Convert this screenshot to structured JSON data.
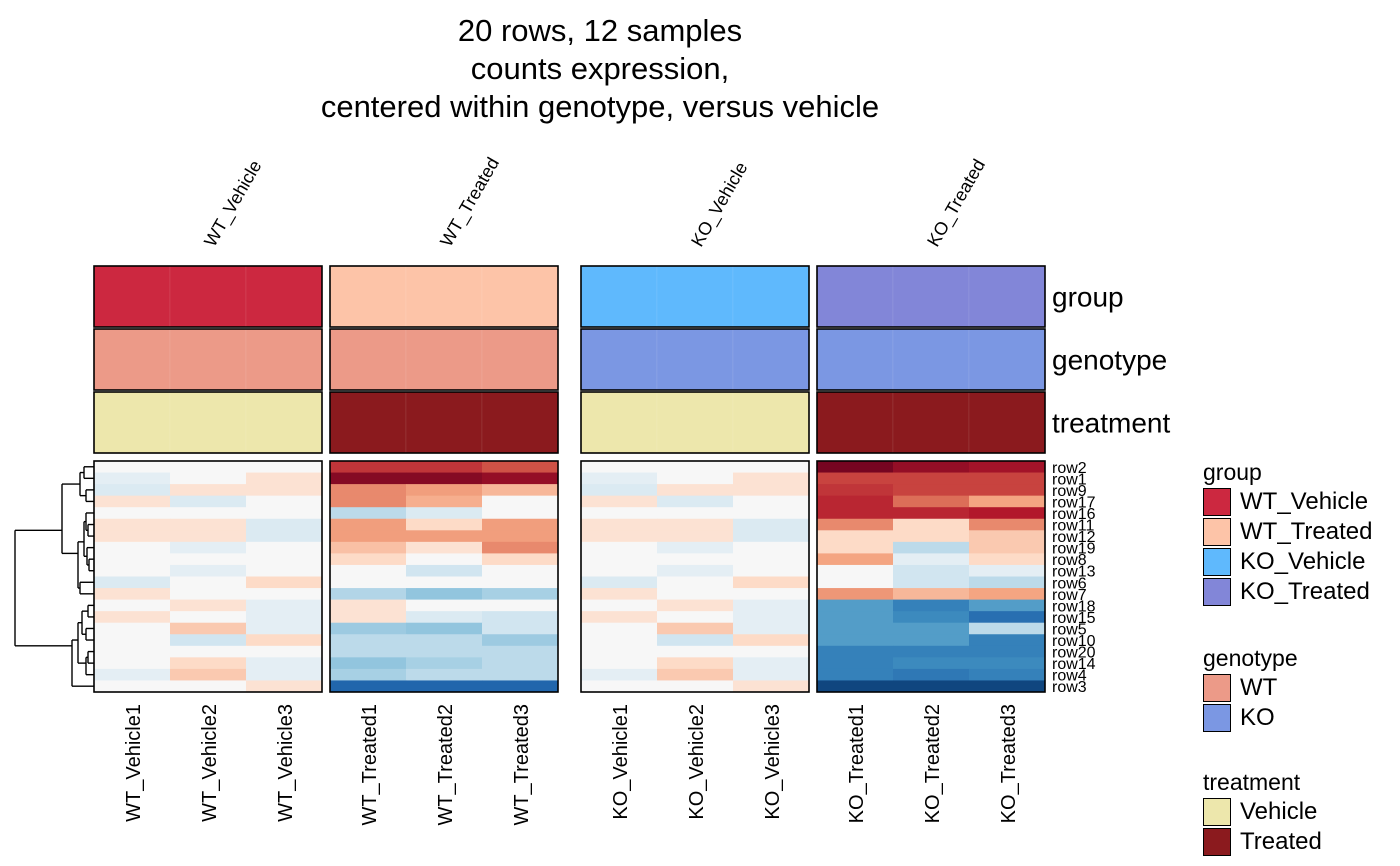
{
  "title_lines": [
    "20 rows, 12 samples",
    "counts expression,",
    "centered within genotype, versus vehicle"
  ],
  "chart_data": {
    "type": "heatmap",
    "title": "20 rows, 12 samples\ncounts expression,\ncentered within genotype, versus vehicle",
    "column_splits": [
      "WT_Vehicle",
      "WT_Treated",
      "KO_Vehicle",
      "KO_Treated"
    ],
    "columns": [
      "WT_Vehicle1",
      "WT_Vehicle2",
      "WT_Vehicle3",
      "WT_Treated1",
      "WT_Treated2",
      "WT_Treated3",
      "KO_Vehicle1",
      "KO_Vehicle2",
      "KO_Vehicle3",
      "KO_Treated1",
      "KO_Treated2",
      "KO_Treated3"
    ],
    "rows": [
      "row2",
      "row1",
      "row9",
      "row17",
      "row16",
      "row11",
      "row12",
      "row19",
      "row8",
      "row13",
      "row6",
      "row7",
      "row18",
      "row15",
      "row5",
      "row10",
      "row20",
      "row14",
      "row4",
      "row3"
    ],
    "color_scale": {
      "low": "#2166ac",
      "mid": "#f7f7f7",
      "high": "#67001f"
    },
    "values": [
      [
        0.0,
        0.0,
        0.0,
        1.3,
        1.3,
        1.1,
        0.0,
        0.0,
        0.0,
        1.9,
        1.7,
        1.6
      ],
      [
        -0.1,
        0.0,
        0.15,
        1.8,
        1.8,
        1.7,
        -0.1,
        0.0,
        0.15,
        1.2,
        1.2,
        1.2
      ],
      [
        -0.15,
        0.15,
        0.15,
        0.7,
        0.55,
        0.4,
        -0.15,
        0.15,
        0.15,
        1.3,
        1.2,
        1.2
      ],
      [
        0.15,
        -0.15,
        0.0,
        0.7,
        0.45,
        0.0,
        0.15,
        -0.15,
        0.0,
        1.4,
        0.9,
        0.5
      ],
      [
        0.0,
        0.0,
        0.0,
        -0.3,
        -0.15,
        0.0,
        0.0,
        0.0,
        0.0,
        1.4,
        1.4,
        1.5
      ],
      [
        0.15,
        0.15,
        -0.15,
        0.55,
        0.2,
        0.55,
        0.15,
        0.15,
        -0.15,
        0.7,
        0.2,
        0.7
      ],
      [
        0.15,
        0.15,
        -0.15,
        0.55,
        0.55,
        0.55,
        0.15,
        0.15,
        -0.15,
        0.2,
        0.2,
        0.3
      ],
      [
        0.0,
        -0.1,
        0.0,
        0.35,
        0.15,
        0.7,
        0.0,
        -0.1,
        0.0,
        0.2,
        -0.3,
        0.3
      ],
      [
        0.0,
        0.0,
        0.0,
        0.2,
        0.0,
        0.2,
        0.0,
        0.0,
        0.0,
        0.5,
        -0.1,
        0.2
      ],
      [
        0.0,
        -0.1,
        0.0,
        0.0,
        -0.2,
        0.0,
        0.0,
        -0.1,
        0.0,
        0.0,
        -0.2,
        -0.1
      ],
      [
        -0.15,
        0.0,
        0.2,
        0.0,
        0.0,
        0.0,
        -0.15,
        0.0,
        0.2,
        0.0,
        -0.2,
        -0.3
      ],
      [
        0.15,
        0.0,
        0.0,
        -0.35,
        -0.5,
        -0.4,
        0.15,
        0.0,
        0.0,
        0.6,
        0.4,
        0.5
      ],
      [
        0.0,
        0.15,
        -0.1,
        0.15,
        0.0,
        0.0,
        0.0,
        0.15,
        -0.1,
        -0.9,
        -1.2,
        -0.9
      ],
      [
        0.15,
        0.0,
        -0.1,
        0.15,
        -0.15,
        -0.2,
        0.15,
        0.0,
        -0.1,
        -0.9,
        -1.1,
        -1.4
      ],
      [
        0.0,
        0.3,
        -0.1,
        -0.45,
        -0.5,
        -0.2,
        0.0,
        0.3,
        -0.1,
        -0.9,
        -0.9,
        -0.3
      ],
      [
        0.0,
        -0.2,
        0.2,
        -0.3,
        -0.3,
        -0.45,
        0.0,
        -0.2,
        0.2,
        -0.9,
        -0.9,
        -1.2
      ],
      [
        0.0,
        0.0,
        0.0,
        -0.3,
        -0.3,
        -0.3,
        0.0,
        0.0,
        0.0,
        -1.2,
        -1.2,
        -1.2
      ],
      [
        0.0,
        0.2,
        -0.1,
        -0.5,
        -0.4,
        -0.3,
        0.0,
        0.2,
        -0.1,
        -1.2,
        -1.1,
        -1.1
      ],
      [
        -0.1,
        0.3,
        -0.1,
        -0.4,
        -0.3,
        -0.3,
        -0.1,
        0.3,
        -0.1,
        -1.2,
        -1.3,
        -1.2
      ],
      [
        0.0,
        0.0,
        0.15,
        -1.5,
        -1.5,
        -1.5,
        0.0,
        0.0,
        0.15,
        -1.8,
        -1.8,
        -1.8
      ]
    ],
    "annotations": [
      {
        "name": "group",
        "values": [
          "WT_Vehicle",
          "WT_Treated",
          "KO_Vehicle",
          "KO_Treated"
        ],
        "colors": {
          "WT_Vehicle": "#cc2840",
          "WT_Treated": "#fdc4a8",
          "KO_Vehicle": "#5fb9fd",
          "KO_Treated": "#8286d8"
        }
      },
      {
        "name": "genotype",
        "values": [
          "WT",
          "WT",
          "KO",
          "KO"
        ],
        "colors": {
          "WT": "#ec9a88",
          "KO": "#7b97e3"
        }
      },
      {
        "name": "treatment",
        "values": [
          "Vehicle",
          "Treated",
          "Vehicle",
          "Treated"
        ],
        "colors": {
          "Vehicle": "#ede7ac",
          "Treated": "#8b1a1e"
        }
      }
    ],
    "row_dendrogram": true
  },
  "legends": [
    {
      "title": "group",
      "items": [
        {
          "label": "WT_Vehicle",
          "color": "#cc2840"
        },
        {
          "label": "WT_Treated",
          "color": "#fdc4a8"
        },
        {
          "label": "KO_Vehicle",
          "color": "#5fb9fd"
        },
        {
          "label": "KO_Treated",
          "color": "#8286d8"
        }
      ]
    },
    {
      "title": "genotype",
      "items": [
        {
          "label": "WT",
          "color": "#ec9a88"
        },
        {
          "label": "KO",
          "color": "#7b97e3"
        }
      ]
    },
    {
      "title": "treatment",
      "items": [
        {
          "label": "Vehicle",
          "color": "#ede7ac"
        },
        {
          "label": "Treated",
          "color": "#8b1a1e"
        }
      ]
    }
  ]
}
